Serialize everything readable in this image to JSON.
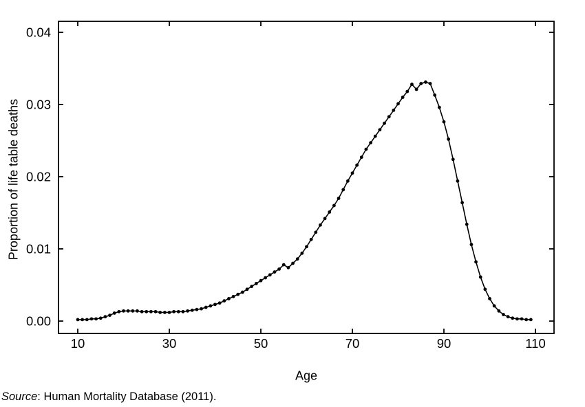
{
  "figure": {
    "source_label": "Source",
    "source_rest": ": Human Mortality Database (2011)."
  },
  "chart_data": {
    "type": "line",
    "title": "",
    "xlabel": "Age",
    "ylabel": "Proportion of life table deaths",
    "source": "Source: Human Mortality Database (2011).",
    "marker": "filled-circle",
    "marker_color": "#000000",
    "line_color": "#000000",
    "grid": false,
    "legend": false,
    "xlim": [
      6,
      114
    ],
    "ylim": [
      -0.0017,
      0.0414
    ],
    "x_ticks": [
      10,
      30,
      50,
      70,
      90,
      110
    ],
    "x_tick_labels": [
      "10",
      "30",
      "50",
      "70",
      "90",
      "110"
    ],
    "y_ticks": [
      0,
      0.01,
      0.02,
      0.03,
      0.04
    ],
    "y_tick_labels": [
      "0.00",
      "0.01",
      "0.02",
      "0.03",
      "0.04"
    ],
    "x": [
      10,
      11,
      12,
      13,
      14,
      15,
      16,
      17,
      18,
      19,
      20,
      21,
      22,
      23,
      24,
      25,
      26,
      27,
      28,
      29,
      30,
      31,
      32,
      33,
      34,
      35,
      36,
      37,
      38,
      39,
      40,
      41,
      42,
      43,
      44,
      45,
      46,
      47,
      48,
      49,
      50,
      51,
      52,
      53,
      54,
      55,
      56,
      57,
      58,
      59,
      60,
      61,
      62,
      63,
      64,
      65,
      66,
      67,
      68,
      69,
      70,
      71,
      72,
      73,
      74,
      75,
      76,
      77,
      78,
      79,
      80,
      81,
      82,
      83,
      84,
      85,
      86,
      87,
      88,
      89,
      90,
      91,
      92,
      93,
      94,
      95,
      96,
      97,
      98,
      99,
      100,
      101,
      102,
      103,
      104,
      105,
      106,
      107,
      108,
      109
    ],
    "values": [
      0.0002,
      0.0002,
      0.0002,
      0.0003,
      0.0003,
      0.0004,
      0.0006,
      0.0008,
      0.0011,
      0.0013,
      0.0014,
      0.0014,
      0.0014,
      0.0014,
      0.0013,
      0.0013,
      0.0013,
      0.0013,
      0.0012,
      0.0012,
      0.0012,
      0.0013,
      0.0013,
      0.0013,
      0.0014,
      0.0015,
      0.0016,
      0.0017,
      0.0019,
      0.0021,
      0.0023,
      0.0025,
      0.0028,
      0.0031,
      0.0034,
      0.0037,
      0.004,
      0.0044,
      0.0048,
      0.0052,
      0.0056,
      0.006,
      0.0064,
      0.0068,
      0.0072,
      0.0078,
      0.0074,
      0.008,
      0.0086,
      0.0094,
      0.0103,
      0.0113,
      0.0123,
      0.0133,
      0.0142,
      0.0151,
      0.016,
      0.017,
      0.0182,
      0.0194,
      0.0205,
      0.0216,
      0.0227,
      0.0238,
      0.0247,
      0.0256,
      0.0265,
      0.0274,
      0.0283,
      0.0292,
      0.0301,
      0.031,
      0.0318,
      0.0328,
      0.0321,
      0.0329,
      0.0331,
      0.0329,
      0.0313,
      0.0296,
      0.0276,
      0.0252,
      0.0224,
      0.0194,
      0.0164,
      0.0134,
      0.0106,
      0.0082,
      0.0061,
      0.0044,
      0.0031,
      0.0021,
      0.0014,
      0.0009,
      0.0006,
      0.0004,
      0.0003,
      0.0003,
      0.0002,
      0.0002
    ]
  }
}
